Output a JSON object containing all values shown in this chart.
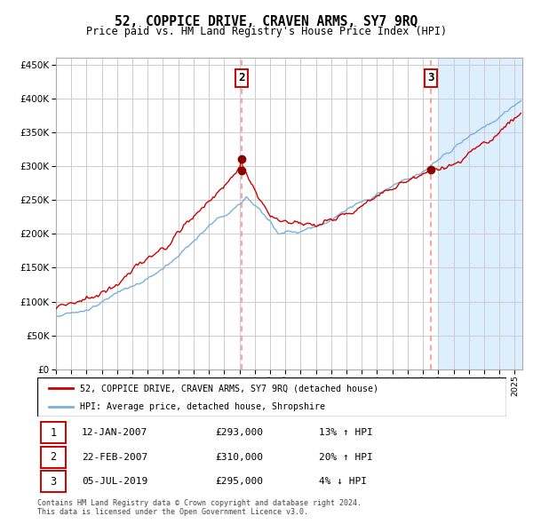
{
  "title": "52, COPPICE DRIVE, CRAVEN ARMS, SY7 9RQ",
  "subtitle": "Price paid vs. HM Land Registry's House Price Index (HPI)",
  "legend_line1": "52, COPPICE DRIVE, CRAVEN ARMS, SY7 9RQ (detached house)",
  "legend_line2": "HPI: Average price, detached house, Shropshire",
  "footer_line1": "Contains HM Land Registry data © Crown copyright and database right 2024.",
  "footer_line2": "This data is licensed under the Open Government Licence v3.0.",
  "transactions": [
    {
      "num": 1,
      "date": "12-JAN-2007",
      "price": 293000,
      "pct": "13%",
      "dir": "↑",
      "year": 2007.04
    },
    {
      "num": 2,
      "date": "22-FEB-2007",
      "price": 310000,
      "pct": "20%",
      "dir": "↑",
      "year": 2007.13
    },
    {
      "num": 3,
      "date": "05-JUL-2019",
      "price": 295000,
      "pct": "4%",
      "dir": "↓",
      "year": 2019.51
    }
  ],
  "vline2_x": 2007.13,
  "vline3_x": 2019.51,
  "red_line_color": "#cc0000",
  "blue_line_color": "#7aafdd",
  "right_bg_color": "#ddeeff",
  "grid_color": "#cccccc",
  "vline_color": "#ff8888",
  "dot_color": "#880000",
  "box_edge_color": "#cc0000",
  "ylim": [
    0,
    460000
  ],
  "xlim_left": 1995.0,
  "xlim_right": 2025.5,
  "yticks": [
    0,
    50000,
    100000,
    150000,
    200000,
    250000,
    300000,
    350000,
    400000,
    450000
  ],
  "xticks": [
    1995,
    1996,
    1997,
    1998,
    1999,
    2000,
    2001,
    2002,
    2003,
    2004,
    2005,
    2006,
    2007,
    2008,
    2009,
    2010,
    2011,
    2012,
    2013,
    2014,
    2015,
    2016,
    2017,
    2018,
    2019,
    2020,
    2021,
    2022,
    2023,
    2024,
    2025
  ],
  "shade_start": 2020.0
}
